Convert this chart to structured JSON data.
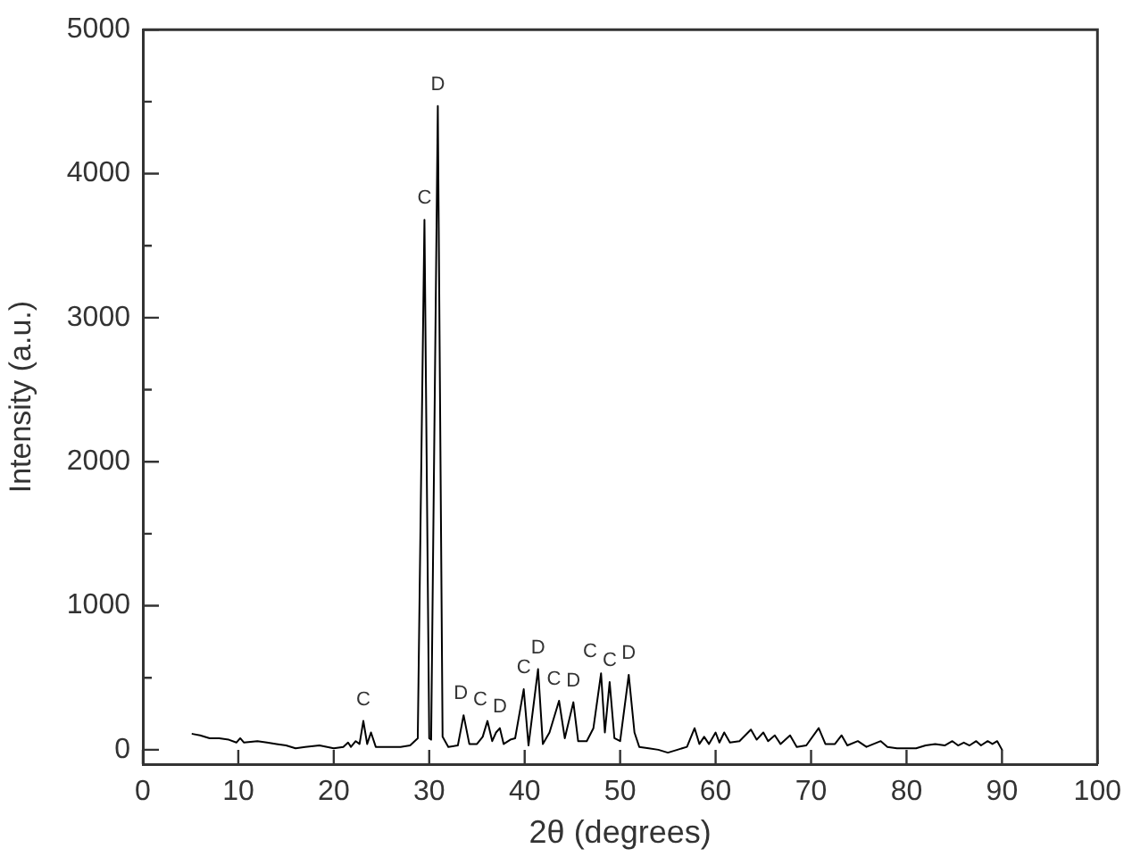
{
  "chart_data": {
    "type": "line",
    "xlabel": "2θ (degrees)",
    "ylabel": "Intensity (a.u.)",
    "x": [
      5.2,
      6,
      7,
      8,
      9,
      9.8,
      10.2,
      10.6,
      12,
      13,
      14,
      15,
      16,
      17,
      18.5,
      20,
      21,
      21.5,
      21.8,
      22.3,
      22.7,
      23.1,
      23.5,
      23.9,
      24.4,
      25,
      26,
      27,
      28,
      28.8,
      29.5,
      30,
      30.2,
      30.9,
      31.4,
      32,
      33,
      33.6,
      34.2,
      35,
      35.6,
      36.1,
      36.6,
      37,
      37.4,
      37.8,
      38.5,
      39,
      39.9,
      40.4,
      41.4,
      41.9,
      42.6,
      43.6,
      44.2,
      45.1,
      45.6,
      46.5,
      47.2,
      48,
      48.4,
      48.9,
      49.4,
      50,
      50.9,
      51.5,
      52,
      53,
      54,
      55,
      56,
      57,
      57.8,
      58.3,
      58.8,
      59.3,
      60,
      60.4,
      60.9,
      61.5,
      62.5,
      63.7,
      64.3,
      65,
      65.5,
      66.2,
      66.8,
      67.8,
      68.5,
      69.5,
      70.8,
      71.5,
      72.5,
      73.2,
      73.8,
      74.9,
      75.8,
      77.3,
      78,
      79,
      80,
      81,
      82,
      83,
      84,
      84.8,
      85.4,
      86,
      86.6,
      87.3,
      87.8,
      88.5,
      89,
      89.5,
      90
    ],
    "values": [
      110,
      100,
      80,
      80,
      70,
      50,
      80,
      50,
      60,
      50,
      40,
      30,
      10,
      20,
      30,
      10,
      20,
      50,
      20,
      60,
      40,
      200,
      40,
      120,
      20,
      20,
      20,
      20,
      30,
      80,
      3680,
      80,
      70,
      4470,
      90,
      20,
      30,
      240,
      40,
      40,
      90,
      200,
      60,
      120,
      150,
      40,
      70,
      80,
      420,
      30,
      560,
      40,
      120,
      340,
      80,
      330,
      60,
      60,
      150,
      530,
      120,
      470,
      80,
      60,
      520,
      120,
      20,
      10,
      0,
      -20,
      0,
      20,
      150,
      40,
      90,
      40,
      120,
      50,
      120,
      50,
      60,
      140,
      70,
      120,
      60,
      100,
      40,
      100,
      20,
      30,
      150,
      40,
      40,
      100,
      30,
      60,
      20,
      60,
      20,
      10,
      10,
      10,
      30,
      40,
      30,
      60,
      30,
      50,
      30,
      60,
      30,
      60,
      40,
      60,
      0
    ],
    "color": "#000000",
    "marker": "none",
    "line_style": "solid",
    "xlim": [
      0,
      100
    ],
    "xticks": [
      0,
      10,
      20,
      30,
      40,
      50,
      60,
      70,
      80,
      90,
      100
    ],
    "ylim": [
      -100,
      5000
    ],
    "yticks": [
      0,
      {
        "value": 500,
        "label": null
      },
      1000,
      {
        "value": 1500,
        "label": null
      },
      2000,
      {
        "value": 2500,
        "label": null
      },
      3000,
      {
        "value": 3500,
        "label": null
      },
      4000,
      {
        "value": 4500,
        "label": null
      },
      5000
    ],
    "annotations": [
      {
        "text": "C",
        "x": 23.1,
        "y": 200
      },
      {
        "text": "C",
        "x": 29.5,
        "y": 3680
      },
      {
        "text": "D",
        "x": 30.9,
        "y": 4470
      },
      {
        "text": "D",
        "x": 33.6,
        "y": 240
      },
      {
        "text": "C",
        "x": 36.1,
        "y": 200
      },
      {
        "text": "D",
        "x": 37.4,
        "y": 150
      },
      {
        "text": "C",
        "x": 39.9,
        "y": 420
      },
      {
        "text": "D",
        "x": 41.4,
        "y": 560
      },
      {
        "text": "C",
        "x": 43.6,
        "y": 340
      },
      {
        "text": "D",
        "x": 45.1,
        "y": 330
      },
      {
        "text": "C",
        "x": 48,
        "y": 530
      },
      {
        "text": "C",
        "x": 48.9,
        "y": 470
      },
      {
        "text": "D",
        "x": 50.9,
        "y": 520
      }
    ]
  }
}
